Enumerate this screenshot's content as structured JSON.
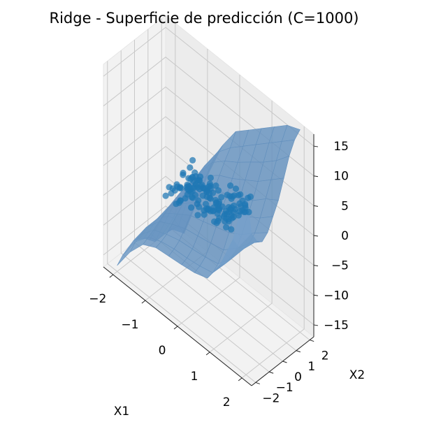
{
  "chart_data": {
    "type": "surface3d",
    "title": "Ridge - Superficie de predicción (C=1000)",
    "xlabel": "X1",
    "ylabel": "X2",
    "zlabel": "",
    "xlim": [
      -2.3,
      2.3
    ],
    "ylim": [
      -2.3,
      2.3
    ],
    "zlim": [
      -17,
      17
    ],
    "x_ticks": [
      {
        "v": -2,
        "label": "−2"
      },
      {
        "v": -1,
        "label": "−1"
      },
      {
        "v": 0,
        "label": "0"
      },
      {
        "v": 1,
        "label": "1"
      },
      {
        "v": 2,
        "label": "2"
      }
    ],
    "y_ticks": [
      {
        "v": -2,
        "label": "−2"
      },
      {
        "v": -1,
        "label": "−1"
      },
      {
        "v": 0,
        "label": "0"
      },
      {
        "v": 1,
        "label": "1"
      },
      {
        "v": 2,
        "label": "2"
      }
    ],
    "z_ticks": [
      {
        "v": -15,
        "label": "−15"
      },
      {
        "v": -10,
        "label": "−10"
      },
      {
        "v": -5,
        "label": "−5"
      },
      {
        "v": 0,
        "label": "0"
      },
      {
        "v": 5,
        "label": "5"
      },
      {
        "v": 10,
        "label": "10"
      },
      {
        "v": 15,
        "label": "15"
      }
    ],
    "grid": true,
    "surface": {
      "color": "#5b96c7",
      "x": [
        -2,
        -1.6,
        -1.2,
        -0.8,
        -0.4,
        0,
        0.4,
        0.8,
        1.2,
        1.6,
        2
      ],
      "y": [
        -2,
        -1.6,
        -1.2,
        -0.8,
        -0.4,
        0,
        0.4,
        0.8,
        1.2,
        1.6,
        2
      ],
      "z": [
        [
          -16,
          -12,
          -9,
          -7.8,
          -7.5,
          -7.2,
          -6.8,
          -6,
          -2,
          4,
          14
        ],
        [
          -15,
          -11,
          -8.5,
          -7.5,
          -7,
          -6.8,
          -6.4,
          -5.8,
          -2.5,
          2,
          6
        ],
        [
          -14.5,
          -10.5,
          -8,
          -7,
          -6.3,
          -6,
          -5.6,
          -5,
          -2.5,
          1,
          4
        ],
        [
          -14,
          -10,
          -7.3,
          -6,
          -5,
          -4.5,
          -4,
          -3.4,
          -1.4,
          1.2,
          3.2
        ],
        [
          -14.5,
          -10,
          -6.6,
          -5,
          -3.5,
          -2.8,
          -2,
          -1.2,
          0.2,
          2.2,
          4
        ],
        [
          -15,
          -10,
          -6,
          -4,
          -2,
          -1,
          0,
          1,
          2.5,
          4,
          6
        ],
        [
          -16,
          -10.5,
          -5.6,
          -3,
          -0.5,
          1,
          2,
          3.2,
          4.5,
          6.5,
          8
        ],
        [
          -17,
          -11,
          -5.2,
          -2,
          1,
          2.8,
          4,
          5.5,
          7,
          9,
          11
        ],
        [
          -18,
          -12,
          -5,
          -1,
          2.5,
          4.5,
          6,
          7.8,
          9.5,
          11.5,
          14
        ],
        [
          -20,
          -14,
          -6,
          -0.5,
          3.5,
          6,
          8,
          10,
          12,
          14,
          16
        ],
        [
          -22,
          -16,
          -9,
          -2,
          4,
          8,
          10,
          12,
          14,
          16,
          17
        ]
      ]
    },
    "scatter": {
      "color": "#1f77b4",
      "points": [
        [
          0.69,
          -0.34,
          0.59
        ],
        [
          -0.74,
          0.56,
          -0.34
        ],
        [
          0.71,
          0.69,
          0.86
        ],
        [
          -0.99,
          0.47,
          -0.5
        ],
        [
          -0.31,
          0.89,
          0.88
        ],
        [
          -0.58,
          -0.8,
          -1.45
        ],
        [
          0.74,
          0.94,
          0.68
        ],
        [
          -0.21,
          0.6,
          0.83
        ],
        [
          -0.94,
          -0.07,
          -1.61
        ],
        [
          -0.07,
          -0.04,
          -0.8
        ],
        [
          -0.27,
          0.26,
          0.39
        ],
        [
          -0.52,
          -0.49,
          -1.02
        ],
        [
          -0.6,
          0.09,
          -0.85
        ],
        [
          -0.92,
          -0.16,
          -1.01
        ],
        [
          -0.46,
          0.44,
          -0.86
        ],
        [
          0.52,
          0.45,
          1.76
        ],
        [
          -0.21,
          0.37,
          -0.93
        ],
        [
          0.3,
          -0.58,
          0.56
        ],
        [
          -0.6,
          0.48,
          0.61
        ],
        [
          0.1,
          0.45,
          -1.2
        ],
        [
          -0.88,
          -0.56,
          -0.8
        ],
        [
          0.58,
          0.48,
          -0.28
        ],
        [
          0.84,
          -0.51,
          1.06
        ],
        [
          -0.61,
          -0.16,
          -0.09
        ],
        [
          -0.19,
          0.77,
          -0.92
        ],
        [
          0.25,
          0.18,
          0.53
        ],
        [
          0.43,
          0.16,
          -0.74
        ],
        [
          0.68,
          -0.92,
          1.15
        ],
        [
          0.35,
          0.11,
          1.89
        ],
        [
          0.69,
          -0.44,
          0.27
        ],
        [
          0.2,
          -0.8,
          -0.06
        ],
        [
          -0.29,
          0.6,
          -0.56
        ],
        [
          -0.4,
          -0.5,
          0.83
        ],
        [
          0.36,
          -0.2,
          -0.25
        ],
        [
          0.16,
          -0.43,
          -0.09
        ],
        [
          -0.34,
          0.68,
          -1.15
        ],
        [
          0.97,
          0.3,
          1.75
        ],
        [
          -0.9,
          0.96,
          1.14
        ],
        [
          0.68,
          0.67,
          1.23
        ],
        [
          0.43,
          0.99,
          2.08
        ],
        [
          0.86,
          0.17,
          0.94
        ],
        [
          0.75,
          0.71,
          0.33
        ],
        [
          -0.72,
          0.28,
          -1.32
        ],
        [
          0.8,
          -0.3,
          2.56
        ],
        [
          -0.1,
          -0.52,
          0.49
        ],
        [
          -0.65,
          0.22,
          -1.73
        ],
        [
          0.84,
          0.73,
          0.41
        ],
        [
          -0.49,
          0.5,
          0.34
        ],
        [
          -0.87,
          0.69,
          0.52
        ],
        [
          -0.09,
          -0.5,
          -0.58
        ],
        [
          0.66,
          0.94,
          1.16
        ],
        [
          0.59,
          0.35,
          2.6
        ],
        [
          -0.93,
          -0.96,
          -1.52
        ],
        [
          -0.9,
          -0.35,
          -1.58
        ],
        [
          -0.96,
          -0.63,
          -0.8
        ],
        [
          0.07,
          -0.97,
          -0.4
        ],
        [
          0.64,
          0.12,
          1.02
        ],
        [
          0.76,
          -0.12,
          1.01
        ],
        [
          0.82,
          0.77,
          0.94
        ],
        [
          0.55,
          -0.71,
          -0.11
        ],
        [
          -0.73,
          -0.32,
          -0.49
        ],
        [
          0.44,
          -0.3,
          1.9
        ],
        [
          0.42,
          -0.23,
          0.65
        ],
        [
          0.66,
          -0.24,
          1.01
        ],
        [
          -0.19,
          0.99,
          -0.09
        ],
        [
          -0.14,
          -0.09,
          0.38
        ],
        [
          -0.12,
          0.36,
          -0.7
        ],
        [
          0.17,
          0.17,
          0.1
        ],
        [
          0.28,
          0.71,
          0.88
        ],
        [
          -0.34,
          -0.43,
          -0.16
        ],
        [
          0.27,
          0.03,
          -0.35
        ],
        [
          -0.96,
          -0.48,
          -2.09
        ],
        [
          0.97,
          0.66,
          1.09
        ],
        [
          0.55,
          -0.52,
          0.35
        ],
        [
          0.99,
          -0.52,
          2.45
        ],
        [
          -0.56,
          0.51,
          -1.12
        ],
        [
          0.74,
          -0.47,
          2.28
        ],
        [
          0.92,
          0.72,
          3.14
        ],
        [
          -0.72,
          0.15,
          -2.35
        ],
        [
          0.37,
          -0.57,
          0.86
        ],
        [
          -0.98,
          0.44,
          -0.72
        ],
        [
          -0.3,
          0.76,
          -1.42
        ],
        [
          -0.67,
          0.77,
          -0.91
        ],
        [
          0.56,
          0.37,
          0.6
        ],
        [
          0.96,
          0.81,
          3.36
        ],
        [
          0.41,
          -0.42,
          2.04
        ],
        [
          -0.43,
          0.54,
          -0.21
        ],
        [
          0.99,
          -0.69,
          0.69
        ],
        [
          -0.94,
          0.14,
          -2.07
        ],
        [
          -0.68,
          -0.79,
          -2.09
        ],
        [
          -0.63,
          -0.57,
          -1.73
        ],
        [
          0.28,
          0.94,
          2.05
        ],
        [
          -0.62,
          0.53,
          -0.92
        ],
        [
          -0.1,
          0.38,
          -0.78
        ],
        [
          0.8,
          -0.61,
          0.06
        ],
        [
          0.27,
          0.14,
          -0.42
        ],
        [
          -0.26,
          -0.37,
          0.45
        ],
        [
          -0.88,
          0.52,
          -2.09
        ],
        [
          0.57,
          -0.34,
          2.06
        ],
        [
          0.16,
          -0.72,
          0.32
        ],
        [
          -0.42,
          0.44,
          -0.22
        ],
        [
          -0.6,
          -0.67,
          -1.4
        ],
        [
          0.89,
          -0.15,
          2.66
        ],
        [
          0.7,
          0.64,
          0.05
        ],
        [
          -0.31,
          0.87,
          -0.46
        ],
        [
          -0.4,
          0.54,
          -0.6
        ],
        [
          -0.24,
          -0.27,
          -1.11
        ],
        [
          0.35,
          -0.44,
          1.14
        ],
        [
          -0.74,
          0.57,
          -0.3
        ],
        [
          -0.25,
          0.45,
          -0.45
        ],
        [
          0.99,
          -0.62,
          2.45
        ],
        [
          -0.43,
          -0.18,
          -0.01
        ],
        [
          -0.58,
          0.3,
          -0.86
        ],
        [
          0.45,
          0.51,
          1.77
        ],
        [
          -0.75,
          0.66,
          -1.14
        ],
        [
          -0.73,
          0.76,
          -2.06
        ],
        [
          0.12,
          -0.35,
          -0.33
        ],
        [
          0.88,
          0.6,
          2.14
        ],
        [
          0.36,
          -0.5,
          0.72
        ],
        [
          0.72,
          -0.21,
          1.51
        ],
        [
          0.74,
          0.11,
          2.16
        ],
        [
          0.49,
          0.73,
          1.67
        ],
        [
          -0.18,
          -0.86,
          -0.42
        ],
        [
          -0.94,
          0.1,
          -2.16
        ],
        [
          0.54,
          -0.87,
          0.36
        ],
        [
          0.18,
          -0.58,
          0.46
        ],
        [
          -0.67,
          0.1,
          -0.6
        ],
        [
          -0.81,
          0.45,
          -0.57
        ],
        [
          0.88,
          -0.61,
          1.77
        ],
        [
          -0.41,
          0.99,
          -1.21
        ],
        [
          0.58,
          0.96,
          1.81
        ],
        [
          0.48,
          0.34,
          0.35
        ],
        [
          0.6,
          -0.3,
          0.49
        ],
        [
          -0.8,
          0.57,
          -0.88
        ],
        [
          -0.02,
          0.77,
          0.23
        ],
        [
          -0.29,
          0.43,
          0.06
        ],
        [
          0.18,
          -0.43,
          0.19
        ],
        [
          -0.66,
          0.87,
          -0.99
        ],
        [
          -0.34,
          0.96,
          -1.15
        ],
        [
          -0.62,
          -0.1,
          -0.56
        ],
        [
          0.54,
          0.92,
          1.6
        ],
        [
          -0.84,
          0.98,
          -0.71
        ],
        [
          -0.66,
          0.95,
          -0.56
        ],
        [
          0.3,
          -0.2,
          1.72
        ],
        [
          -0.45,
          -0.1,
          -1.31
        ]
      ]
    }
  }
}
